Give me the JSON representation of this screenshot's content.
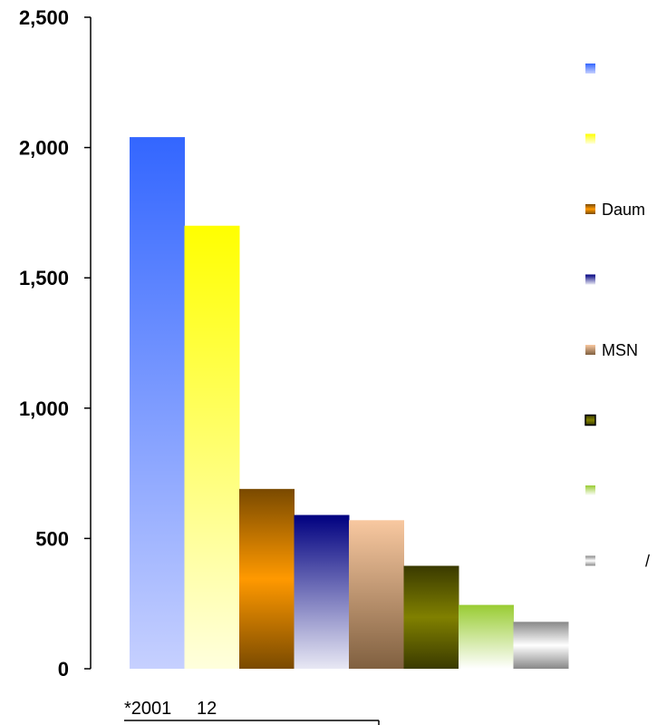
{
  "chart_data": {
    "type": "bar",
    "title": "",
    "xlabel": "",
    "ylabel": "",
    "ylim": [
      0,
      2500
    ],
    "yticks": [
      0,
      500,
      1000,
      1500,
      2000,
      2500
    ],
    "ytick_labels": [
      "0",
      "500",
      "1,000",
      "1,500",
      "2,000",
      "2,500"
    ],
    "grid": false,
    "legend_position": "right",
    "series": [
      {
        "name": "",
        "value": 2040,
        "color_top": "#3366ff",
        "color_bottom": "#c6d0ff"
      },
      {
        "name": "",
        "value": 1700,
        "color_top": "#ffff00",
        "color_bottom": "#ffffdd"
      },
      {
        "name": "Daum",
        "value": 690,
        "color_top": "#7a4a00",
        "color_mid": "#ff9900",
        "color_bottom": "#7a4a00"
      },
      {
        "name": "",
        "value": 590,
        "color_top": "#000080",
        "color_bottom": "#e8e8f4"
      },
      {
        "name": "MSN",
        "value": 570,
        "color_top": "#f8c8a0",
        "color_bottom": "#806040"
      },
      {
        "name": "",
        "value": 395,
        "color_top": "#3a3a00",
        "color_mid": "#808000",
        "color_bottom": "#3a3a00"
      },
      {
        "name": "",
        "value": 245,
        "color_top": "#99cc33",
        "color_bottom": "#ffffff"
      },
      {
        "name": "/",
        "value": 180,
        "color_top": "#888888",
        "color_mid": "#ffffff",
        "color_bottom": "#888888"
      }
    ],
    "footnote": "*2001     12"
  }
}
